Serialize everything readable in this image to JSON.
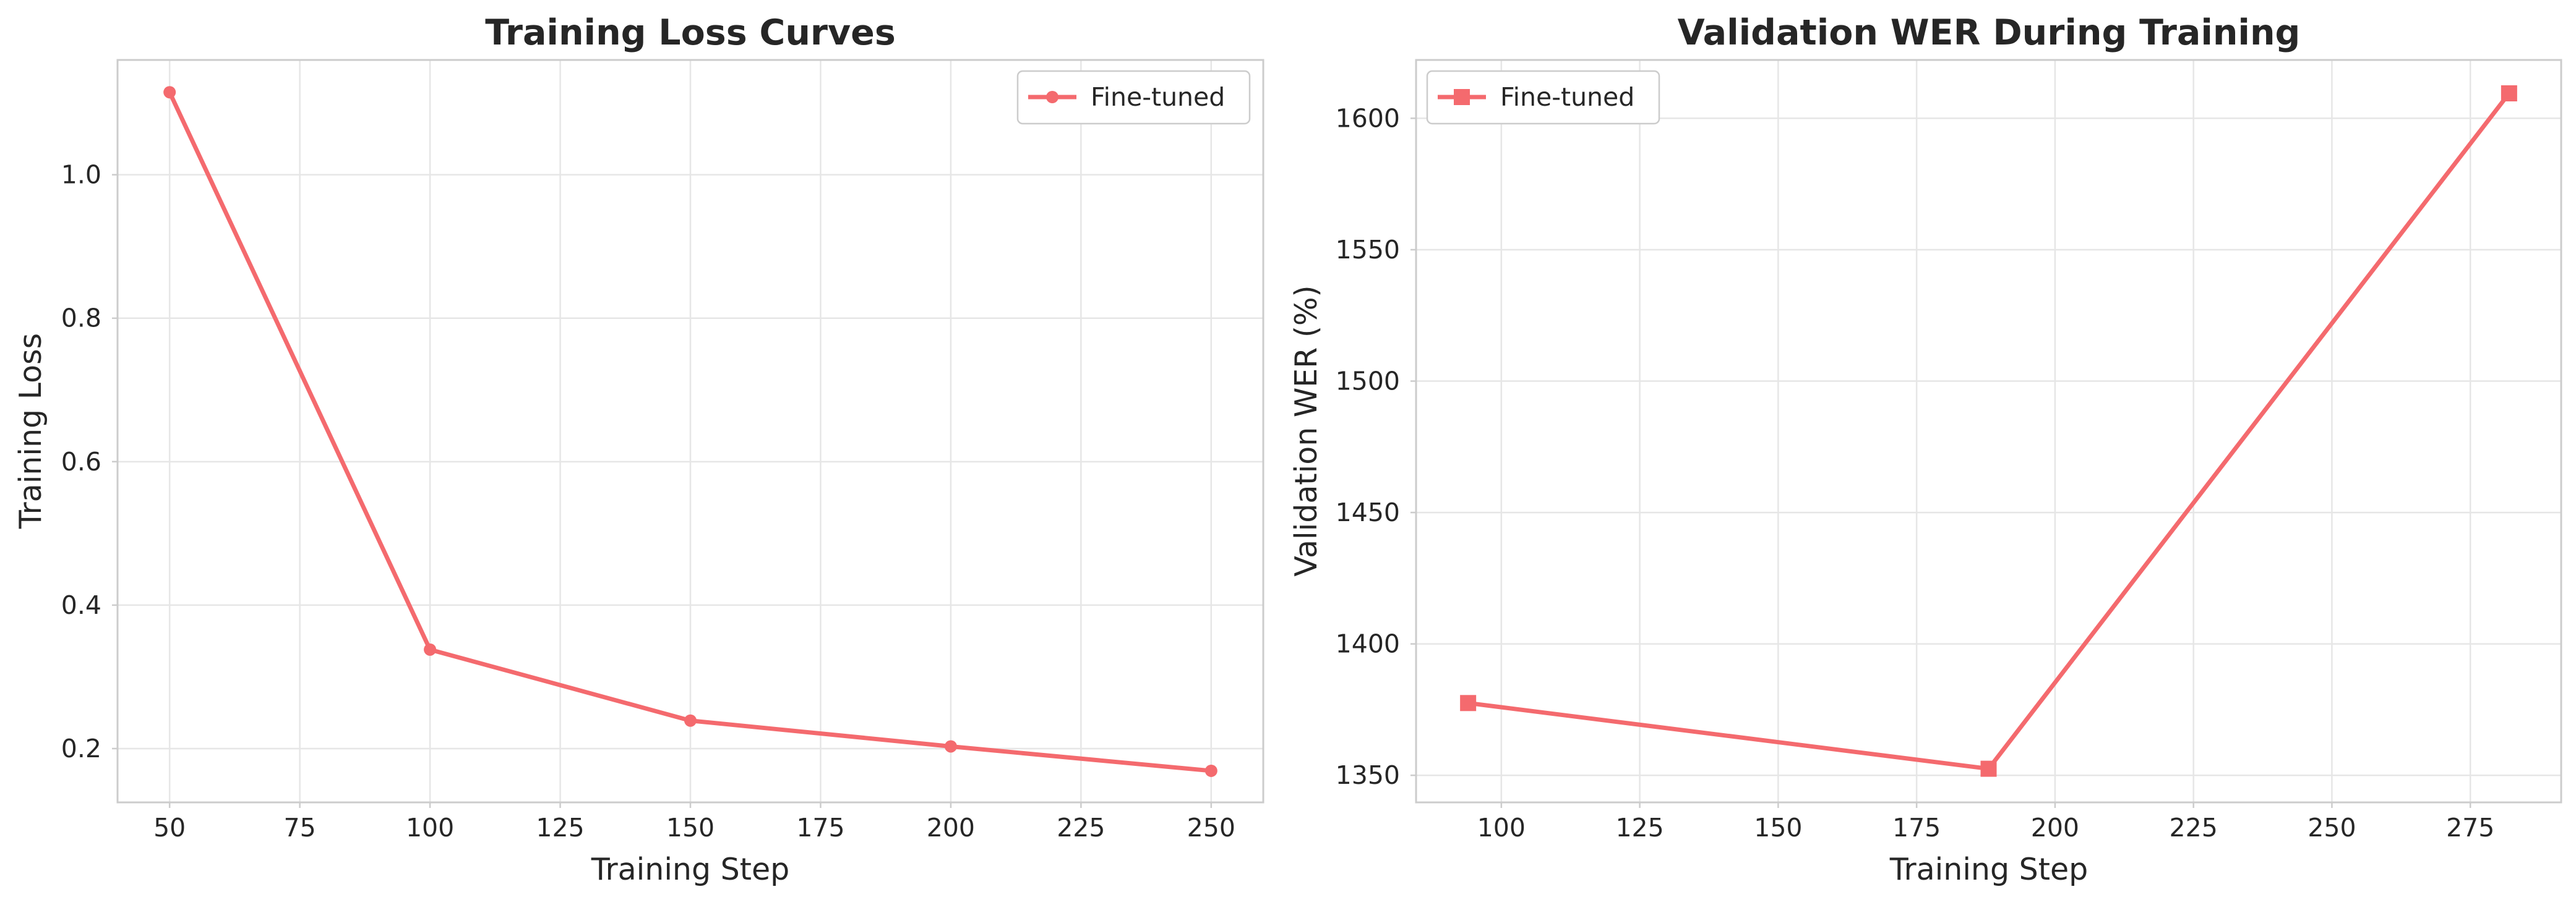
{
  "chart_data": [
    {
      "type": "line",
      "title": "Training Loss Curves",
      "xlabel": "Training Step",
      "ylabel": "Training Loss",
      "xlim": [
        40,
        260
      ],
      "ylim": [
        0.125,
        1.16
      ],
      "xticks": [
        50,
        75,
        100,
        125,
        150,
        175,
        200,
        225,
        250
      ],
      "yticks": [
        0.2,
        0.4,
        0.6,
        0.8,
        1.0
      ],
      "ytick_decimals": 1,
      "grid": true,
      "legend": "upper right",
      "marker": "circle",
      "series": [
        {
          "name": "Fine-tuned",
          "color": "#f46a6e",
          "x": [
            50,
            100,
            150,
            200,
            250
          ],
          "y": [
            1.115,
            0.338,
            0.239,
            0.203,
            0.169
          ]
        }
      ]
    },
    {
      "type": "line",
      "title": "Validation WER During Training",
      "xlabel": "Training Step",
      "ylabel": "Validation WER (%)",
      "xlim": [
        84.6,
        291.4
      ],
      "ylim": [
        1339.7,
        1622.2
      ],
      "xticks": [
        100,
        125,
        150,
        175,
        200,
        225,
        250,
        275
      ],
      "yticks": [
        1350,
        1400,
        1450,
        1500,
        1550,
        1600
      ],
      "ytick_decimals": 0,
      "grid": true,
      "legend": "upper left",
      "marker": "square",
      "series": [
        {
          "name": "Fine-tuned",
          "color": "#f46a6e",
          "x": [
            94,
            188,
            282
          ],
          "y": [
            1377.5,
            1352.5,
            1609.5
          ]
        }
      ]
    }
  ]
}
